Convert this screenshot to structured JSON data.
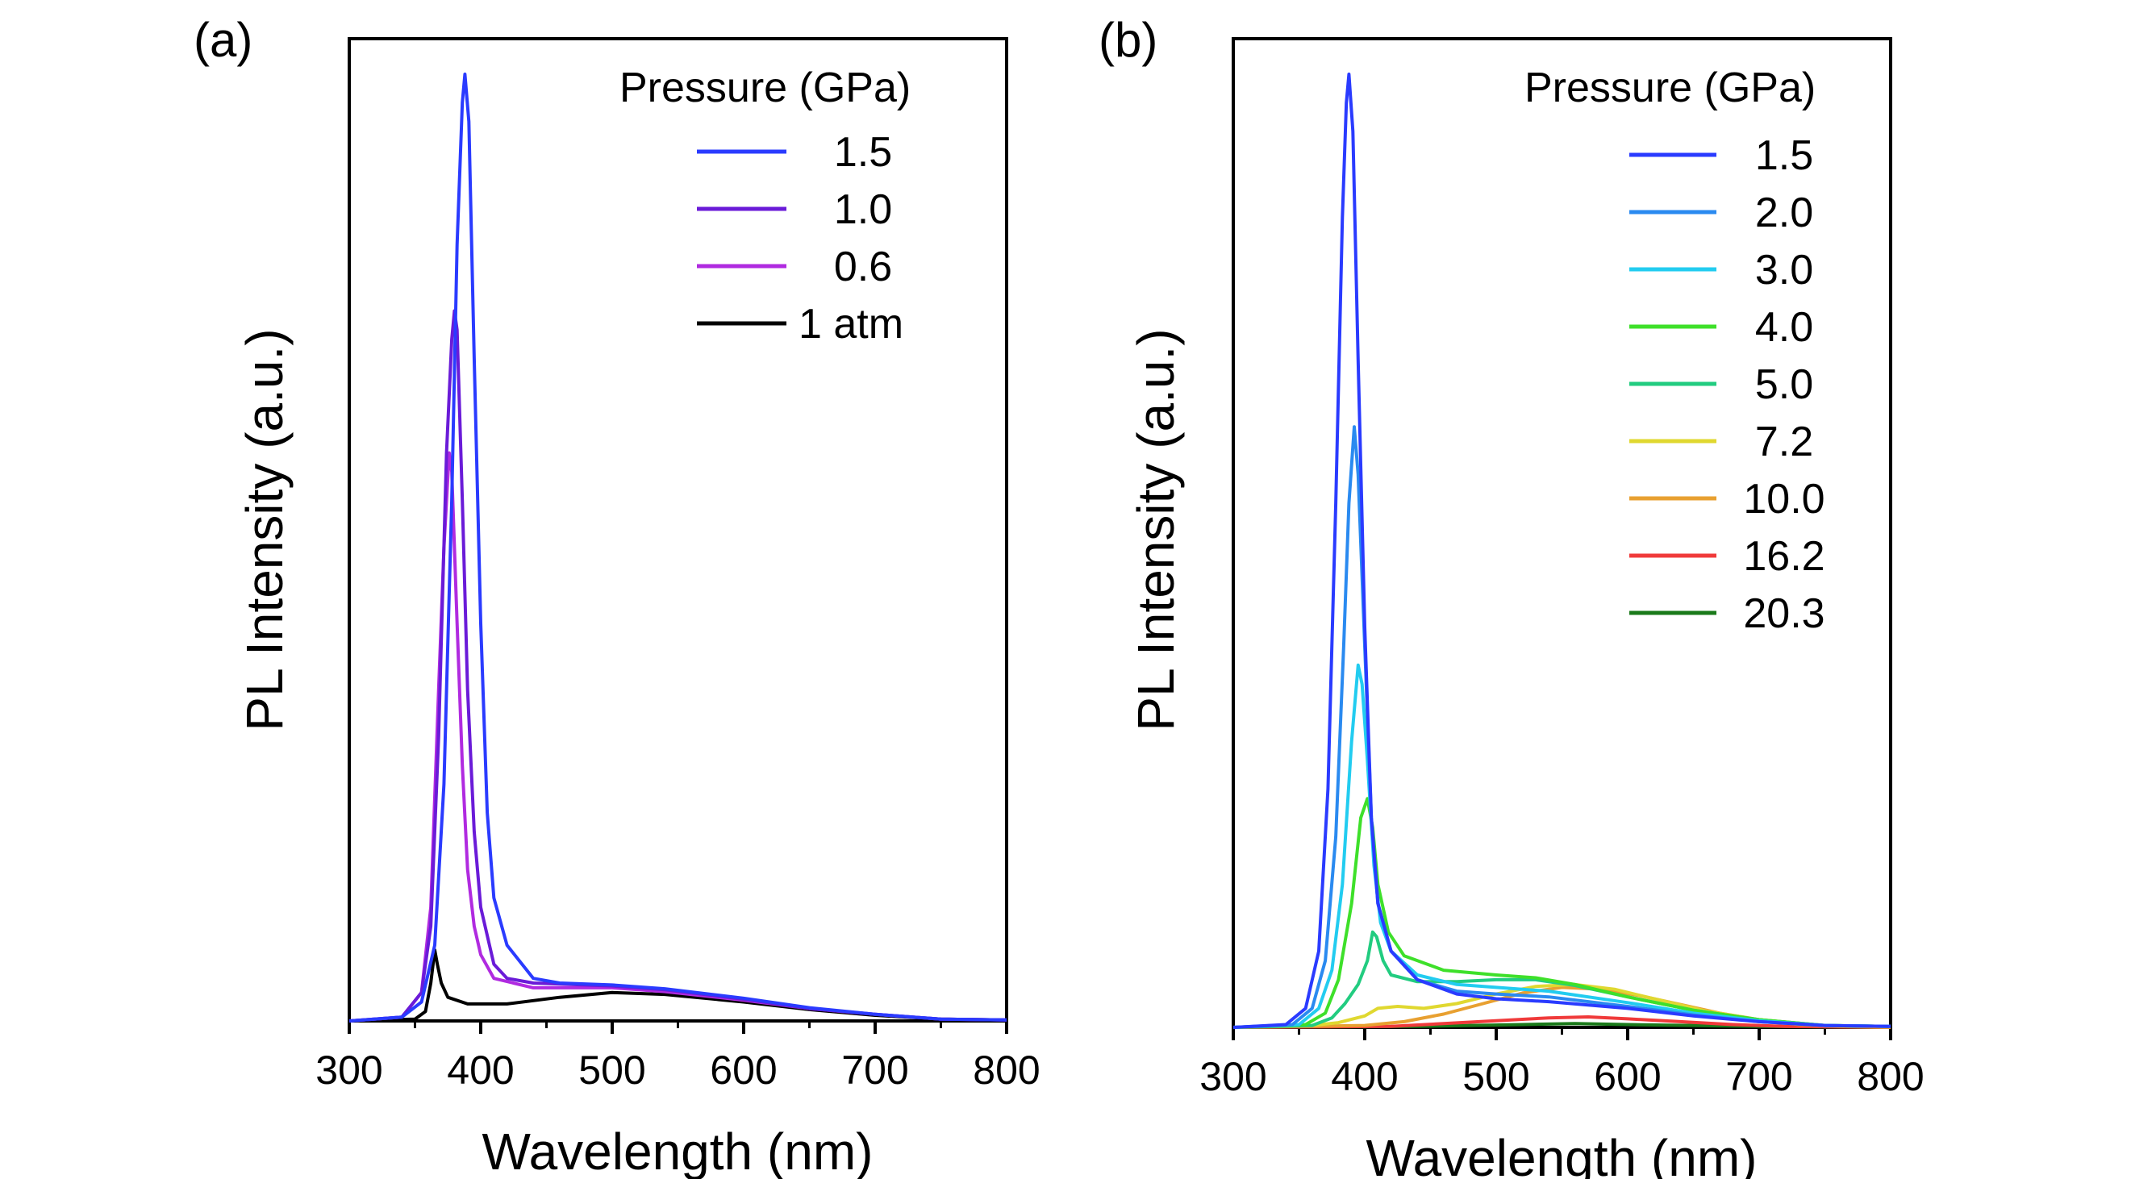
{
  "chart_data": [
    {
      "type": "line",
      "panel_label": "(a)",
      "title": "",
      "xlabel": "Wavelength (nm)",
      "ylabel": "PL Intensity (a.u.)",
      "xlim": [
        300,
        800
      ],
      "ylim": [
        0,
        1.0
      ],
      "x_ticks": [
        "300",
        "400",
        "500",
        "600",
        "700",
        "800"
      ],
      "y_ticks_labeled": false,
      "legend": {
        "title": "Pressure (GPa)",
        "position": "top-right",
        "entries": [
          "1.5",
          "1.0",
          "0.6",
          "1 atm"
        ]
      },
      "series": [
        {
          "name": "1.5",
          "color": "#2a3bff",
          "points": [
            [
              300,
              0
            ],
            [
              340,
              0.004
            ],
            [
              355,
              0.02
            ],
            [
              365,
              0.08
            ],
            [
              372,
              0.25
            ],
            [
              378,
              0.55
            ],
            [
              382,
              0.82
            ],
            [
              386,
              0.97
            ],
            [
              388,
              1.0
            ],
            [
              391,
              0.95
            ],
            [
              395,
              0.7
            ],
            [
              400,
              0.42
            ],
            [
              405,
              0.22
            ],
            [
              410,
              0.13
            ],
            [
              420,
              0.08
            ],
            [
              440,
              0.045
            ],
            [
              460,
              0.04
            ],
            [
              500,
              0.038
            ],
            [
              540,
              0.034
            ],
            [
              600,
              0.024
            ],
            [
              650,
              0.014
            ],
            [
              700,
              0.007
            ],
            [
              750,
              0.002
            ],
            [
              800,
              0.001
            ]
          ]
        },
        {
          "name": "1.0",
          "color": "#6a1bd8",
          "points": [
            [
              300,
              0
            ],
            [
              340,
              0.004
            ],
            [
              355,
              0.03
            ],
            [
              362,
              0.1
            ],
            [
              368,
              0.3
            ],
            [
              374,
              0.6
            ],
            [
              378,
              0.72
            ],
            [
              380,
              0.75
            ],
            [
              382,
              0.73
            ],
            [
              386,
              0.55
            ],
            [
              390,
              0.35
            ],
            [
              395,
              0.2
            ],
            [
              400,
              0.12
            ],
            [
              410,
              0.06
            ],
            [
              420,
              0.045
            ],
            [
              440,
              0.04
            ],
            [
              500,
              0.037
            ],
            [
              540,
              0.033
            ],
            [
              600,
              0.023
            ],
            [
              650,
              0.013
            ],
            [
              700,
              0.007
            ],
            [
              750,
              0.002
            ],
            [
              800,
              0.001
            ]
          ]
        },
        {
          "name": "0.6",
          "color": "#b02ae0",
          "points": [
            [
              300,
              0
            ],
            [
              340,
              0.004
            ],
            [
              355,
              0.03
            ],
            [
              362,
              0.12
            ],
            [
              368,
              0.35
            ],
            [
              372,
              0.5
            ],
            [
              376,
              0.6
            ],
            [
              378,
              0.58
            ],
            [
              382,
              0.42
            ],
            [
              386,
              0.27
            ],
            [
              390,
              0.16
            ],
            [
              395,
              0.1
            ],
            [
              400,
              0.07
            ],
            [
              410,
              0.045
            ],
            [
              440,
              0.035
            ],
            [
              500,
              0.035
            ],
            [
              540,
              0.031
            ],
            [
              600,
              0.022
            ],
            [
              650,
              0.013
            ],
            [
              700,
              0.007
            ],
            [
              750,
              0.002
            ],
            [
              800,
              0.001
            ]
          ]
        },
        {
          "name": "1 atm",
          "color": "#000000",
          "points": [
            [
              300,
              0
            ],
            [
              350,
              0.002
            ],
            [
              358,
              0.01
            ],
            [
              362,
              0.04
            ],
            [
              365,
              0.075
            ],
            [
              367,
              0.06
            ],
            [
              370,
              0.04
            ],
            [
              375,
              0.025
            ],
            [
              390,
              0.018
            ],
            [
              420,
              0.018
            ],
            [
              460,
              0.025
            ],
            [
              500,
              0.03
            ],
            [
              540,
              0.028
            ],
            [
              600,
              0.02
            ],
            [
              650,
              0.012
            ],
            [
              700,
              0.006
            ],
            [
              750,
              0.002
            ],
            [
              800,
              0.001
            ]
          ]
        }
      ]
    },
    {
      "type": "line",
      "panel_label": "(b)",
      "title": "",
      "xlabel": "Wavelength (nm)",
      "ylabel": "PL Intensity (a.u.)",
      "xlim": [
        300,
        800
      ],
      "ylim": [
        0,
        1.0
      ],
      "x_ticks": [
        "300",
        "400",
        "500",
        "600",
        "700",
        "800"
      ],
      "y_ticks_labeled": false,
      "legend": {
        "title": "Pressure (GPa)",
        "position": "top-right",
        "entries": [
          "1.5",
          "2.0",
          "3.0",
          "4.0",
          "5.0",
          "7.2",
          "10.0",
          "16.2",
          "20.3"
        ]
      },
      "series": [
        {
          "name": "1.5",
          "color": "#2a3bff",
          "points": [
            [
              300,
              0
            ],
            [
              340,
              0.003
            ],
            [
              355,
              0.02
            ],
            [
              365,
              0.08
            ],
            [
              372,
              0.25
            ],
            [
              378,
              0.55
            ],
            [
              383,
              0.85
            ],
            [
              386,
              0.97
            ],
            [
              388,
              1.0
            ],
            [
              391,
              0.94
            ],
            [
              395,
              0.7
            ],
            [
              400,
              0.42
            ],
            [
              405,
              0.22
            ],
            [
              410,
              0.13
            ],
            [
              420,
              0.08
            ],
            [
              440,
              0.05
            ],
            [
              470,
              0.035
            ],
            [
              500,
              0.03
            ],
            [
              540,
              0.027
            ],
            [
              600,
              0.02
            ],
            [
              650,
              0.012
            ],
            [
              700,
              0.006
            ],
            [
              750,
              0.002
            ],
            [
              800,
              0.001
            ]
          ]
        },
        {
          "name": "2.0",
          "color": "#2a8af0",
          "points": [
            [
              300,
              0
            ],
            [
              345,
              0.003
            ],
            [
              360,
              0.02
            ],
            [
              370,
              0.07
            ],
            [
              378,
              0.2
            ],
            [
              384,
              0.4
            ],
            [
              388,
              0.55
            ],
            [
              392,
              0.63
            ],
            [
              395,
              0.58
            ],
            [
              400,
              0.4
            ],
            [
              405,
              0.22
            ],
            [
              410,
              0.13
            ],
            [
              420,
              0.08
            ],
            [
              440,
              0.05
            ],
            [
              470,
              0.038
            ],
            [
              500,
              0.035
            ],
            [
              540,
              0.032
            ],
            [
              600,
              0.022
            ],
            [
              650,
              0.013
            ],
            [
              700,
              0.006
            ],
            [
              750,
              0.002
            ],
            [
              800,
              0.001
            ]
          ]
        },
        {
          "name": "3.0",
          "color": "#22ccf0",
          "points": [
            [
              300,
              0
            ],
            [
              350,
              0.003
            ],
            [
              365,
              0.02
            ],
            [
              375,
              0.06
            ],
            [
              383,
              0.15
            ],
            [
              390,
              0.3
            ],
            [
              395,
              0.38
            ],
            [
              398,
              0.36
            ],
            [
              402,
              0.28
            ],
            [
              407,
              0.17
            ],
            [
              412,
              0.11
            ],
            [
              420,
              0.08
            ],
            [
              440,
              0.055
            ],
            [
              470,
              0.045
            ],
            [
              500,
              0.042
            ],
            [
              540,
              0.038
            ],
            [
              600,
              0.026
            ],
            [
              650,
              0.015
            ],
            [
              700,
              0.007
            ],
            [
              750,
              0.002
            ],
            [
              800,
              0.001
            ]
          ]
        },
        {
          "name": "4.0",
          "color": "#3ee02a",
          "points": [
            [
              300,
              0
            ],
            [
              355,
              0.003
            ],
            [
              370,
              0.015
            ],
            [
              380,
              0.05
            ],
            [
              390,
              0.13
            ],
            [
              397,
              0.22
            ],
            [
              402,
              0.24
            ],
            [
              406,
              0.21
            ],
            [
              410,
              0.15
            ],
            [
              418,
              0.1
            ],
            [
              430,
              0.075
            ],
            [
              460,
              0.06
            ],
            [
              500,
              0.055
            ],
            [
              530,
              0.052
            ],
            [
              560,
              0.045
            ],
            [
              600,
              0.032
            ],
            [
              650,
              0.018
            ],
            [
              700,
              0.008
            ],
            [
              750,
              0.002
            ],
            [
              800,
              0.001
            ]
          ]
        },
        {
          "name": "5.0",
          "color": "#22cc80",
          "points": [
            [
              300,
              0
            ],
            [
              360,
              0.002
            ],
            [
              375,
              0.01
            ],
            [
              385,
              0.025
            ],
            [
              395,
              0.045
            ],
            [
              402,
              0.07
            ],
            [
              406,
              0.1
            ],
            [
              409,
              0.095
            ],
            [
              414,
              0.07
            ],
            [
              420,
              0.055
            ],
            [
              440,
              0.048
            ],
            [
              470,
              0.048
            ],
            [
              500,
              0.05
            ],
            [
              530,
              0.05
            ],
            [
              560,
              0.044
            ],
            [
              600,
              0.032
            ],
            [
              650,
              0.018
            ],
            [
              700,
              0.008
            ],
            [
              750,
              0.002
            ],
            [
              800,
              0.001
            ]
          ]
        },
        {
          "name": "7.2",
          "color": "#e0d830",
          "points": [
            [
              300,
              0
            ],
            [
              360,
              0.002
            ],
            [
              380,
              0.005
            ],
            [
              400,
              0.012
            ],
            [
              410,
              0.02
            ],
            [
              425,
              0.022
            ],
            [
              445,
              0.02
            ],
            [
              470,
              0.025
            ],
            [
              500,
              0.035
            ],
            [
              530,
              0.043
            ],
            [
              560,
              0.045
            ],
            [
              590,
              0.04
            ],
            [
              620,
              0.03
            ],
            [
              660,
              0.017
            ],
            [
              700,
              0.008
            ],
            [
              750,
              0.002
            ],
            [
              800,
              0.001
            ]
          ]
        },
        {
          "name": "10.0",
          "color": "#e8a030",
          "points": [
            [
              300,
              0
            ],
            [
              400,
              0.002
            ],
            [
              430,
              0.006
            ],
            [
              460,
              0.014
            ],
            [
              490,
              0.025
            ],
            [
              520,
              0.036
            ],
            [
              550,
              0.042
            ],
            [
              580,
              0.04
            ],
            [
              610,
              0.033
            ],
            [
              640,
              0.024
            ],
            [
              670,
              0.015
            ],
            [
              700,
              0.008
            ],
            [
              730,
              0.003
            ],
            [
              760,
              0.001
            ],
            [
              800,
              0.0
            ]
          ]
        },
        {
          "name": "16.2",
          "color": "#f03a3a",
          "points": [
            [
              300,
              0
            ],
            [
              420,
              0.001
            ],
            [
              460,
              0.004
            ],
            [
              500,
              0.007
            ],
            [
              540,
              0.01
            ],
            [
              570,
              0.011
            ],
            [
              600,
              0.009
            ],
            [
              640,
              0.006
            ],
            [
              680,
              0.003
            ],
            [
              720,
              0.001
            ],
            [
              800,
              0.0
            ]
          ]
        },
        {
          "name": "20.3",
          "color": "#1a7a1a",
          "points": [
            [
              300,
              0
            ],
            [
              440,
              0.001
            ],
            [
              480,
              0.002
            ],
            [
              520,
              0.003
            ],
            [
              560,
              0.004
            ],
            [
              600,
              0.003
            ],
            [
              650,
              0.002
            ],
            [
              700,
              0.001
            ],
            [
              800,
              0.0
            ]
          ]
        }
      ]
    }
  ]
}
